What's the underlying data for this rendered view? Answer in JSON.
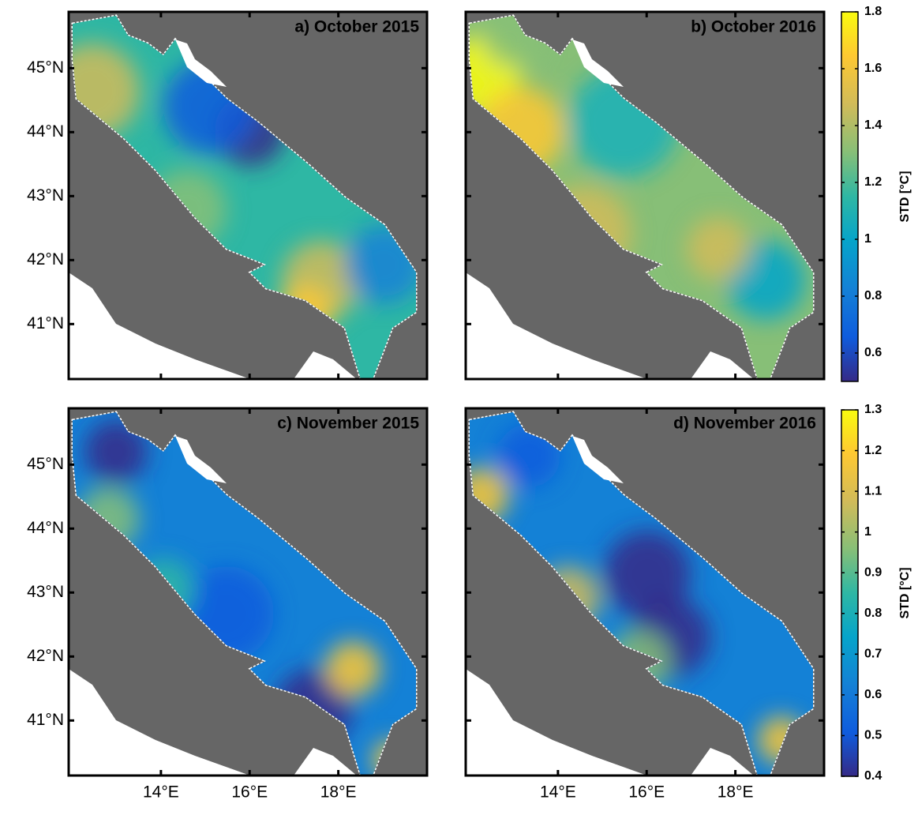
{
  "panels": [
    {
      "title": "a) October 2015"
    },
    {
      "title": "b) October 2016"
    },
    {
      "title": "c) November 2015"
    },
    {
      "title": "d) November 2016"
    }
  ],
  "map": {
    "xlim": [
      11.92,
      20
    ],
    "ylim": [
      40.14,
      45.88
    ],
    "xticks": [
      {
        "value": 14,
        "label": "14°E"
      },
      {
        "value": 16,
        "label": "16°E"
      },
      {
        "value": 18,
        "label": "18°E"
      }
    ],
    "yticks": [
      {
        "value": 41,
        "label": "41°N"
      },
      {
        "value": 42,
        "label": "42°N"
      },
      {
        "value": 43,
        "label": "43°N"
      },
      {
        "value": 44,
        "label": "44°N"
      },
      {
        "value": 45,
        "label": "45°N"
      }
    ]
  },
  "colorbars": [
    {
      "label": "STD [°C]",
      "ylim": [
        0.5,
        1.8
      ],
      "yticks": [
        0.6,
        0.8,
        1,
        1.2,
        1.4,
        1.6,
        1.8
      ]
    },
    {
      "label": "STD [°C]",
      "ylim": [
        0.4,
        1.3
      ],
      "yticks": [
        0.4,
        0.5,
        0.6,
        0.7,
        0.8,
        0.9,
        1,
        1.1,
        1.2,
        1.3
      ]
    }
  ]
}
